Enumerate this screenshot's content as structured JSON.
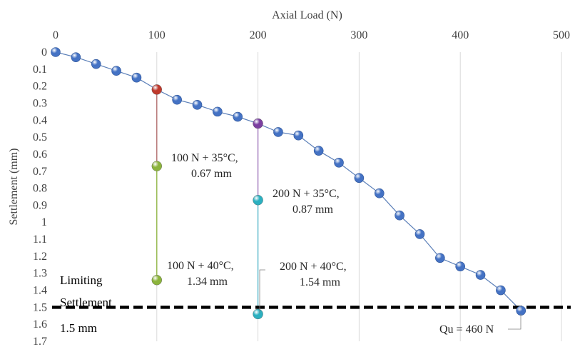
{
  "chart_data": {
    "type": "scatter",
    "xlabel": "Axial Load (N)",
    "ylabel": "Settlement (mm)",
    "xlim": [
      0,
      500
    ],
    "ylim": [
      0,
      1.7
    ],
    "x_ticks": [
      0,
      100,
      200,
      300,
      400,
      500
    ],
    "y_ticks": [
      0,
      0.1,
      0.2,
      0.3,
      0.4,
      0.5,
      0.6,
      0.7,
      0.8,
      0.9,
      1,
      1.1,
      1.2,
      1.3,
      1.4,
      1.5,
      1.6,
      1.7
    ],
    "x_axis_position": "top",
    "y_axis_inverted": true,
    "grid": "vertical",
    "series": [
      {
        "color": "#4472C4",
        "points": [
          [
            0,
            0
          ],
          [
            20,
            0.03
          ],
          [
            40,
            0.07
          ],
          [
            60,
            0.11
          ],
          [
            80,
            0.15
          ],
          [
            100,
            0.22
          ],
          [
            120,
            0.28
          ],
          [
            140,
            0.31
          ],
          [
            160,
            0.35
          ],
          [
            180,
            0.38
          ],
          [
            200,
            0.42
          ],
          [
            220,
            0.47
          ],
          [
            240,
            0.49
          ],
          [
            260,
            0.58
          ],
          [
            280,
            0.65
          ],
          [
            300,
            0.74
          ],
          [
            320,
            0.83
          ],
          [
            340,
            0.96
          ],
          [
            360,
            1.07
          ],
          [
            380,
            1.21
          ],
          [
            400,
            1.26
          ],
          [
            420,
            1.31
          ],
          [
            440,
            1.4
          ],
          [
            460,
            1.52
          ]
        ]
      }
    ],
    "special_points": [
      {
        "x": 100,
        "y": 0.22,
        "color": "#C0392B"
      },
      {
        "x": 200,
        "y": 0.42,
        "color": "#7B3FA0"
      },
      {
        "x": 100,
        "y": 0.67,
        "color": "#8CB43C"
      },
      {
        "x": 200,
        "y": 0.87,
        "color": "#2BB0C0"
      },
      {
        "x": 100,
        "y": 1.34,
        "color": "#8CB43C"
      },
      {
        "x": 200,
        "y": 1.54,
        "color": "#2BB0C0"
      }
    ],
    "drop_lines": [
      {
        "x": 100,
        "y1": 0.22,
        "y2": 0.67,
        "color": "#B06868"
      },
      {
        "x": 100,
        "y1": 0.67,
        "y2": 1.34,
        "color": "#8CB43C"
      },
      {
        "x": 200,
        "y1": 0.42,
        "y2": 0.87,
        "color": "#9A6FB8"
      },
      {
        "x": 200,
        "y1": 0.87,
        "y2": 1.54,
        "color": "#4BB4C8"
      }
    ],
    "annotations": [
      {
        "lines": [
          "100 N + 35°C,",
          "0.67 mm"
        ]
      },
      {
        "lines": [
          "200 N + 35°C,",
          "0.87 mm"
        ]
      },
      {
        "lines": [
          "100 N + 40°C,",
          "1.34 mm"
        ]
      },
      {
        "lines": [
          "200 N + 40°C,",
          "1.54 mm"
        ]
      },
      {
        "lines": [
          "Qu = 460 N"
        ]
      }
    ],
    "limit_line": {
      "y": 1.5,
      "color": "#000000",
      "label_lines": [
        "Limiting",
        "Settlement",
        "1.5 mm"
      ]
    }
  }
}
